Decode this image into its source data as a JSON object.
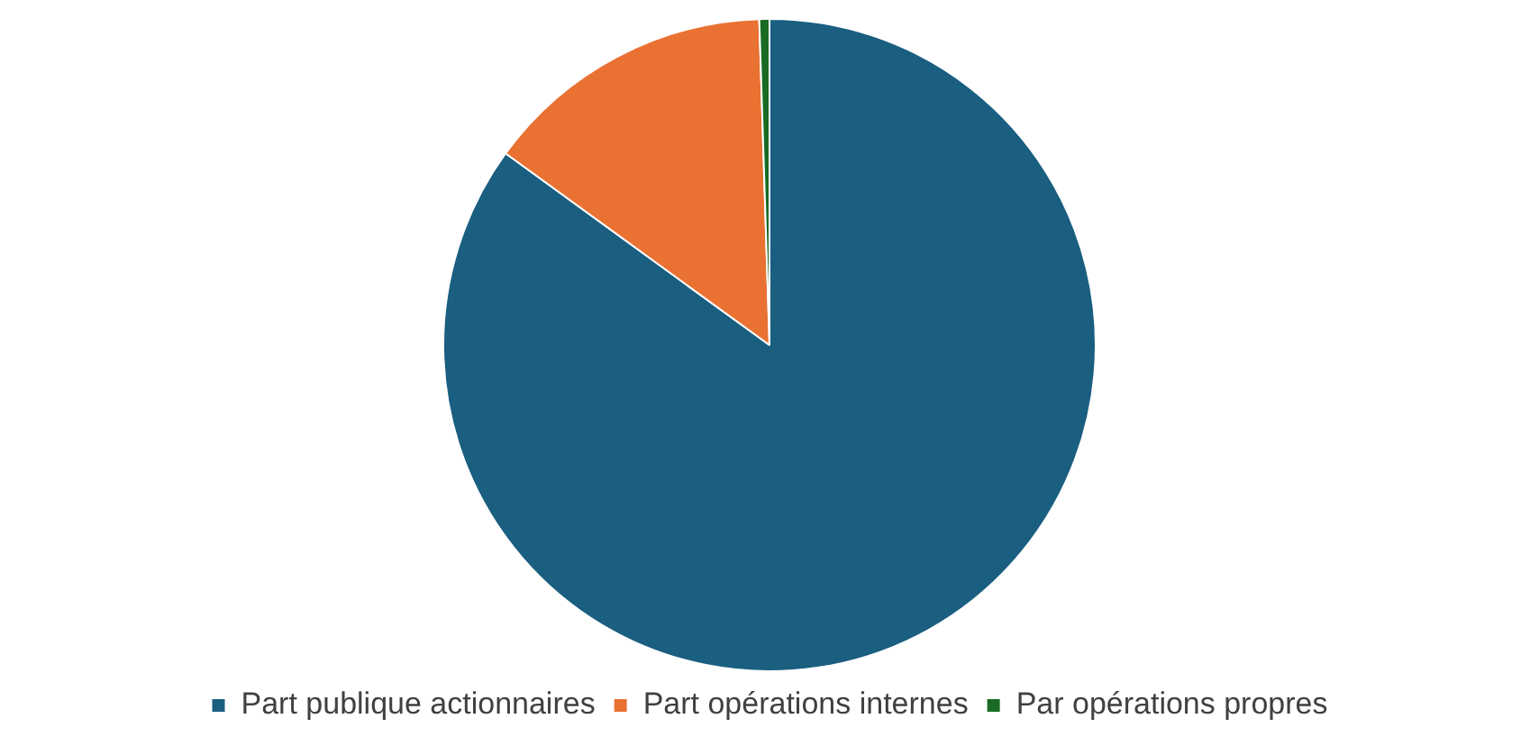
{
  "chart_data": {
    "type": "pie",
    "categories": [
      "Part publique actionnaires",
      "Part opérations internes",
      "Par opérations propres"
    ],
    "values": [
      85,
      14.5,
      0.5
    ],
    "colors": [
      "#1a5e80",
      "#e97132",
      "#196b24"
    ],
    "legend": "bottom"
  }
}
